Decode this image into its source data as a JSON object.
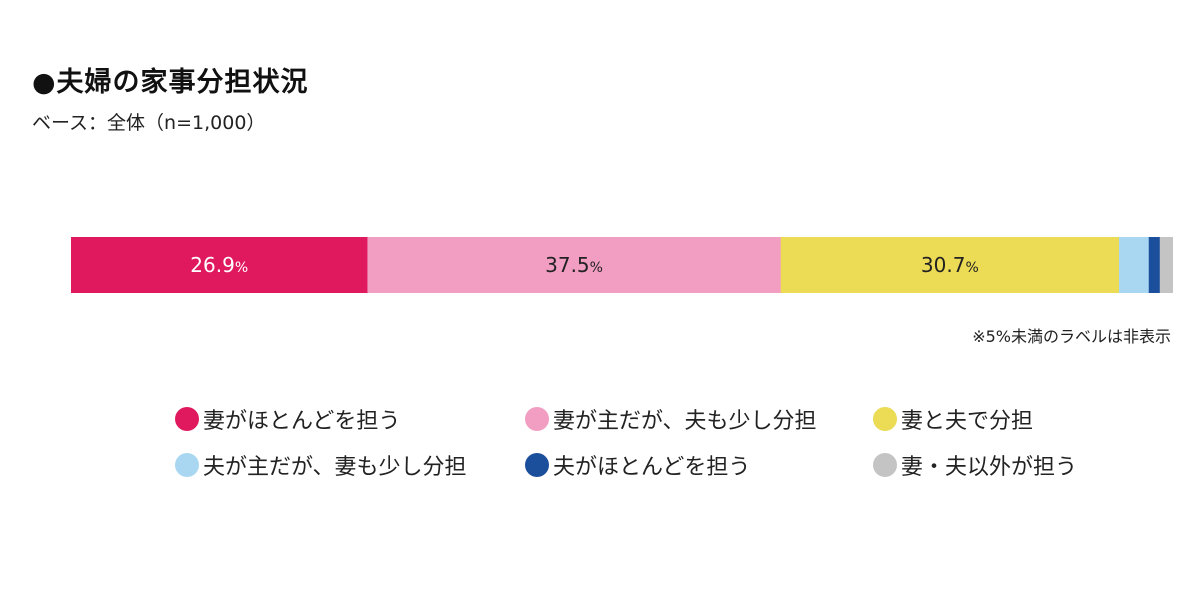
{
  "title": "●夫婦の家事分担状況",
  "subtitle": "ベース：全体（n=1,000）",
  "note": "※5%未満のラベルは非表示",
  "chart_data": {
    "type": "bar",
    "orientation": "horizontal",
    "stacked": true,
    "categories": [
      "全体"
    ],
    "series": [
      {
        "name": "妻がほとんどを担う",
        "values": [
          26.9
        ],
        "color": "#e0195e",
        "label": "26.9",
        "label_color": "#ffffff"
      },
      {
        "name": "妻が主だが、夫も少し分担",
        "values": [
          37.5
        ],
        "color": "#f19ec2",
        "label": "37.5",
        "label_color": "#222222"
      },
      {
        "name": "妻と夫で分担",
        "values": [
          30.7
        ],
        "color": "#ebdb55",
        "label": "30.7",
        "label_color": "#222222"
      },
      {
        "name": "夫が主だが、妻も少し分担",
        "values": [
          2.7
        ],
        "color": "#a9d7f2",
        "label": "",
        "label_color": "#222222"
      },
      {
        "name": "夫がほとんどを担う",
        "values": [
          1.0
        ],
        "color": "#1b4f9c",
        "label": "",
        "label_color": "#ffffff"
      },
      {
        "name": "妻・夫以外が担う",
        "values": [
          1.2
        ],
        "color": "#c4c4c4",
        "label": "",
        "label_color": "#222222"
      }
    ],
    "unit": "%",
    "legend_position": "bottom"
  }
}
